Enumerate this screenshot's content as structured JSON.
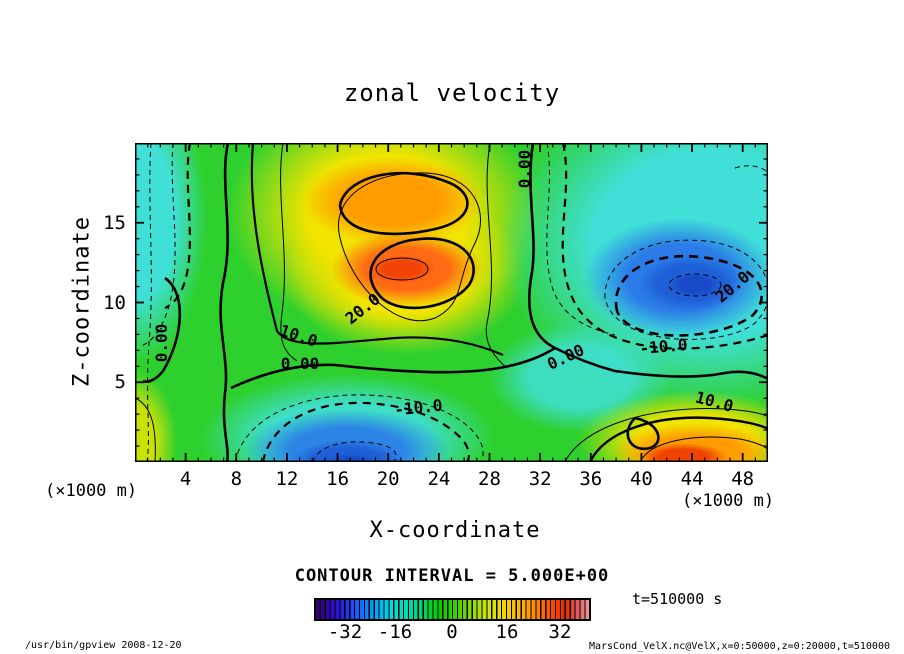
{
  "title": "zonal velocity",
  "axes": {
    "x": {
      "label": "X-coordinate",
      "unit": "(×1000 m)",
      "tick_labels": [
        "4",
        "8",
        "12",
        "16",
        "20",
        "24",
        "28",
        "32",
        "36",
        "40",
        "44",
        "48"
      ]
    },
    "y": {
      "label": "Z-coordinate",
      "unit": "(×1000 m)",
      "tick_labels": [
        "5",
        "10",
        "15"
      ]
    }
  },
  "contour_labels": [
    {
      "text": "0.00"
    },
    {
      "text": "0.00"
    },
    {
      "text": "10.0"
    },
    {
      "text": "20.0"
    },
    {
      "text": "0.00"
    },
    {
      "text": "-10.0"
    },
    {
      "text": "20.0"
    },
    {
      "text": "-10.0"
    },
    {
      "text": "0.00"
    },
    {
      "text": "10.0"
    }
  ],
  "legend": {
    "interval_text": "CONTOUR INTERVAL = 5.000E+00",
    "time_text": "t=510000 s",
    "colorbar_tick_labels": [
      "-32",
      "-16",
      "0",
      "16",
      "32"
    ]
  },
  "footer": {
    "left": "/usr/bin/gpview  2008-12-20",
    "right": "MarsCond_VelX.nc@VelX,x=0:50000,z=0:20000,t=510000"
  },
  "chart_data": {
    "type": "heatmap",
    "subtype": "filled_contour",
    "title": "zonal velocity",
    "xlabel": "X-coordinate (×1000 m)",
    "ylabel": "Z-coordinate (×1000 m)",
    "xlim": [
      0,
      50
    ],
    "ylim": [
      0,
      20
    ],
    "x_ticks": [
      4,
      8,
      12,
      16,
      20,
      24,
      28,
      32,
      36,
      40,
      44,
      48
    ],
    "y_ticks": [
      5,
      10,
      15
    ],
    "grid": false,
    "contour_interval": 5.0,
    "labeled_contour_values": [
      -20,
      -10,
      0,
      10,
      20
    ],
    "negative_contours_dashed": true,
    "colorbar": {
      "ticks": [
        -32,
        -16,
        0,
        16,
        32
      ],
      "range_approx": [
        -40,
        40
      ],
      "palette": [
        "#30006a",
        "#1e50ff",
        "#00dcdc",
        "#00cc00",
        "#d8e600",
        "#ffb400",
        "#ff5000",
        "#f09898"
      ]
    },
    "time_seconds": 510000,
    "extrema": [
      {
        "kind": "max",
        "value_approx": 27,
        "x": 17.5,
        "z": 12,
        "desc": "orange-red core, centre-left"
      },
      {
        "kind": "max",
        "value_approx": 22,
        "x": 17,
        "z": 16.5,
        "desc": "upper orange lobe"
      },
      {
        "kind": "min",
        "value_approx": -27,
        "x": 44,
        "z": 11.5,
        "desc": "dark blue core, right side"
      },
      {
        "kind": "min",
        "value_approx": -17,
        "x": 17.5,
        "z": 0.8,
        "desc": "blue pool, bottom centre"
      },
      {
        "kind": "max",
        "value_approx": 18,
        "x": 42,
        "z": 1,
        "desc": "orange-red pool, bottom right"
      },
      {
        "kind": "background",
        "value_approx": 0,
        "desc": "green near-zero field elsewhere"
      }
    ]
  }
}
